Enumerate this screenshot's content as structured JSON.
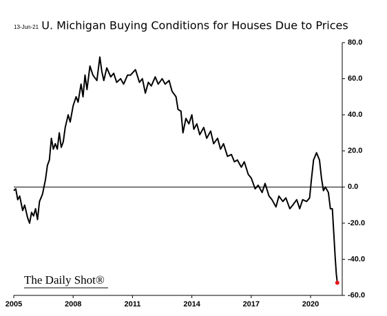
{
  "chart_data": {
    "type": "line",
    "title": "U. Michigan Buying Conditions for Houses Due to Prices",
    "date": "13-Jun-21",
    "source": "The Daily Shot®",
    "series": [
      {
        "name": "Buying conditions due to prices",
        "color": "#000000",
        "last_point_color": "#e8141b",
        "x": [
          2005.0,
          2005.1,
          2005.2,
          2005.3,
          2005.45,
          2005.55,
          2005.7,
          2005.8,
          2005.9,
          2006.0,
          2006.1,
          2006.2,
          2006.3,
          2006.45,
          2006.6,
          2006.7,
          2006.8,
          2006.9,
          2007.0,
          2007.1,
          2007.2,
          2007.3,
          2007.4,
          2007.5,
          2007.6,
          2007.75,
          2007.85,
          2008.0,
          2008.15,
          2008.25,
          2008.4,
          2008.5,
          2008.6,
          2008.7,
          2008.85,
          2009.0,
          2009.2,
          2009.35,
          2009.45,
          2009.55,
          2009.7,
          2009.9,
          2010.05,
          2010.2,
          2010.4,
          2010.55,
          2010.75,
          2010.9,
          2011.15,
          2011.35,
          2011.5,
          2011.65,
          2011.8,
          2011.95,
          2012.15,
          2012.3,
          2012.5,
          2012.65,
          2012.85,
          2013.0,
          2013.2,
          2013.3,
          2013.45,
          2013.55,
          2013.7,
          2013.85,
          2014.0,
          2014.1,
          2014.25,
          2014.4,
          2014.6,
          2014.75,
          2014.95,
          2015.1,
          2015.3,
          2015.45,
          2015.6,
          2015.8,
          2016.0,
          2016.15,
          2016.3,
          2016.5,
          2016.65,
          2016.85,
          2017.0,
          2017.2,
          2017.35,
          2017.55,
          2017.7,
          2017.9,
          2018.05,
          2018.25,
          2018.4,
          2018.6,
          2018.75,
          2018.95,
          2019.1,
          2019.3,
          2019.45,
          2019.6,
          2019.8,
          2019.95,
          2020.05,
          2020.15,
          2020.3,
          2020.45,
          2020.55,
          2020.65,
          2020.75,
          2020.9,
          2021.0,
          2021.1,
          2021.25,
          2021.3,
          2021.35
        ],
        "values": [
          -2,
          -1,
          -7,
          -5,
          -13,
          -10,
          -17,
          -20,
          -14,
          -16,
          -12,
          -18,
          -8,
          -4,
          4,
          12,
          15,
          27,
          21,
          24,
          21,
          30,
          22,
          25,
          33,
          40,
          36,
          45,
          50,
          47,
          57,
          50,
          62,
          54,
          67,
          62,
          59,
          72,
          64,
          59,
          66,
          61,
          63,
          58,
          60,
          57,
          62,
          62,
          65,
          58,
          60,
          52,
          58,
          56,
          61,
          57,
          60,
          57,
          59,
          53,
          50,
          43,
          42,
          30,
          38,
          35,
          40,
          32,
          35,
          29,
          33,
          27,
          31,
          24,
          27,
          21,
          24,
          17,
          18,
          14,
          15,
          11,
          14,
          7,
          5,
          -1,
          1,
          -3,
          2,
          -5,
          -7,
          -11,
          -5,
          -8,
          -6,
          -12,
          -10,
          -7,
          -12,
          -7,
          -8,
          -6,
          5,
          15,
          19,
          15,
          5,
          -2,
          0,
          -3,
          -12,
          -12,
          -40,
          -48,
          -53
        ]
      }
    ],
    "xlim": [
      2005,
      2021.6
    ],
    "xticks": [
      2005,
      2008,
      2011,
      2014,
      2017,
      2020
    ],
    "ylim": [
      -60,
      80
    ],
    "yticks": [
      {
        "value": 80,
        "label": "80.0"
      },
      {
        "value": 60,
        "label": "60.0"
      },
      {
        "value": 40,
        "label": "40.0"
      },
      {
        "value": 20,
        "label": "20.0"
      },
      {
        "value": 0,
        "label": "0.0"
      },
      {
        "value": -20,
        "label": "-20.0"
      },
      {
        "value": -40,
        "label": "-40.0"
      },
      {
        "value": -60,
        "label": "-60.0"
      }
    ],
    "zero_line": true,
    "grid": false
  }
}
